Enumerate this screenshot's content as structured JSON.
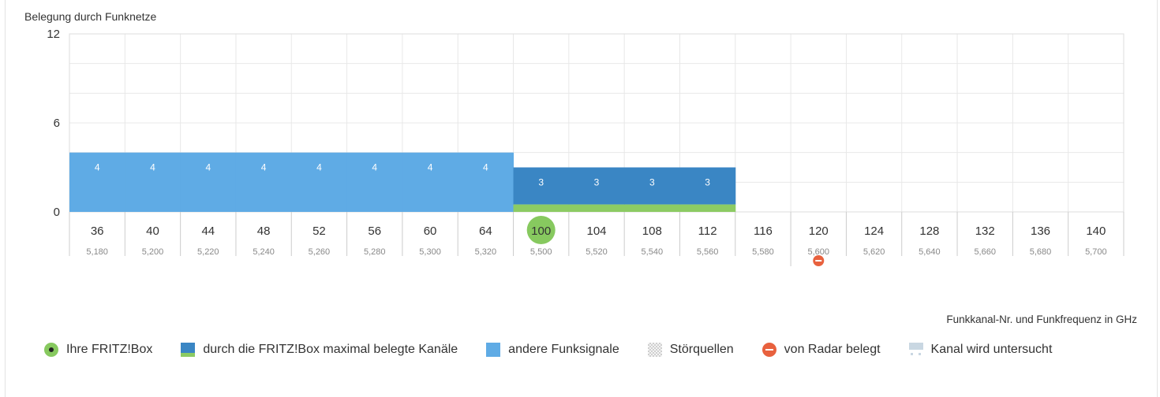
{
  "chart_data": {
    "type": "bar",
    "title": "Belegung durch Funknetze",
    "xlabel": "Funkkanal-Nr. und Funkfrequenz in GHz",
    "ylabel": "",
    "ylim": [
      0,
      12
    ],
    "yticks": [
      0,
      6,
      12
    ],
    "grid": true,
    "channels": [
      "36",
      "40",
      "44",
      "48",
      "52",
      "56",
      "60",
      "64",
      "100",
      "104",
      "108",
      "112",
      "116",
      "120",
      "124",
      "128",
      "132",
      "136",
      "140"
    ],
    "frequencies": [
      "5,180",
      "5,200",
      "5,220",
      "5,240",
      "5,260",
      "5,280",
      "5,300",
      "5,320",
      "5,500",
      "5,520",
      "5,540",
      "5,560",
      "5,580",
      "5,600",
      "5,620",
      "5,640",
      "5,660",
      "5,680",
      "5,700"
    ],
    "series": [
      {
        "type": "andere",
        "values": [
          4,
          4,
          4,
          4,
          4,
          4,
          4,
          4,
          null,
          null,
          null,
          null,
          null,
          null,
          null,
          null,
          null,
          null,
          null
        ]
      },
      {
        "type": "fritzbox",
        "values": [
          null,
          null,
          null,
          null,
          null,
          null,
          null,
          null,
          3,
          3,
          3,
          3,
          null,
          null,
          null,
          null,
          null,
          null,
          null
        ]
      }
    ],
    "fritzbox_channel": "100",
    "radar_channels": [
      "120"
    ],
    "colors": {
      "andere": "#5fabe5",
      "fritzbox": "#3a86c4",
      "fritzbox_base": "#8ccb63",
      "fritzbox_marker": "#87c95f",
      "radar": "#e8613e",
      "grid": "#e8e8e8",
      "axis": "#cccccc"
    },
    "legend": [
      {
        "icon": "fritzbox-dot-icon",
        "label": "Ihre FRITZ!Box"
      },
      {
        "icon": "max-channels-swatch-icon",
        "label": "durch die FRITZ!Box maximal belegte Kanäle"
      },
      {
        "icon": "other-signals-swatch-icon",
        "label": "andere Funksignale"
      },
      {
        "icon": "interference-swatch-icon",
        "label": "Störquellen"
      },
      {
        "icon": "radar-icon",
        "label": "von Radar belegt"
      },
      {
        "icon": "scanning-swatch-icon",
        "label": "Kanal wird untersucht"
      }
    ]
  }
}
